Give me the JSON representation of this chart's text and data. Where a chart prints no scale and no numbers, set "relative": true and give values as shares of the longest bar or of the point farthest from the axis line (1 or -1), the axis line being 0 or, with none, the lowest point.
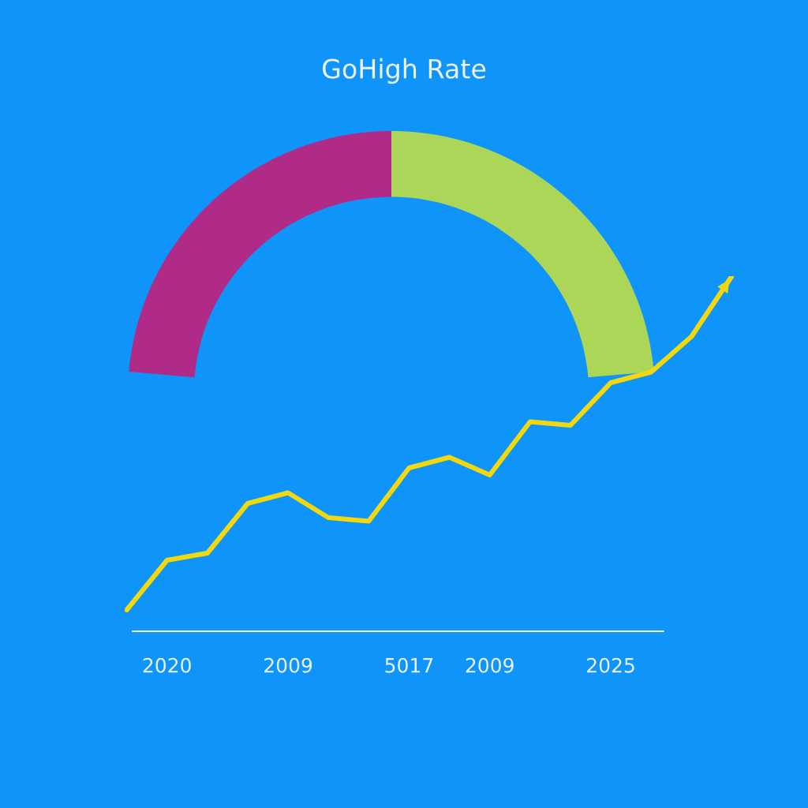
{
  "chart_data": [
    {
      "type": "donut",
      "title": "GoHigh Rate",
      "categories": [
        null,
        null
      ],
      "values": [
        50,
        50
      ],
      "colors": [
        "#b02a88",
        "#acd657"
      ]
    },
    {
      "type": "line",
      "relative": true,
      "categories": [
        null,
        "2020",
        null,
        null,
        "2009",
        null,
        null,
        "5017",
        null,
        "2009",
        null,
        null,
        "2025",
        null,
        null,
        null
      ],
      "series": [
        {
          "color": "#f2d80c",
          "values": [
            0.06,
            0.2,
            0.22,
            0.36,
            0.39,
            0.32,
            0.31,
            0.46,
            0.49,
            0.44,
            0.59,
            0.58,
            0.7,
            0.73,
            0.83,
            1.0
          ]
        }
      ]
    }
  ]
}
